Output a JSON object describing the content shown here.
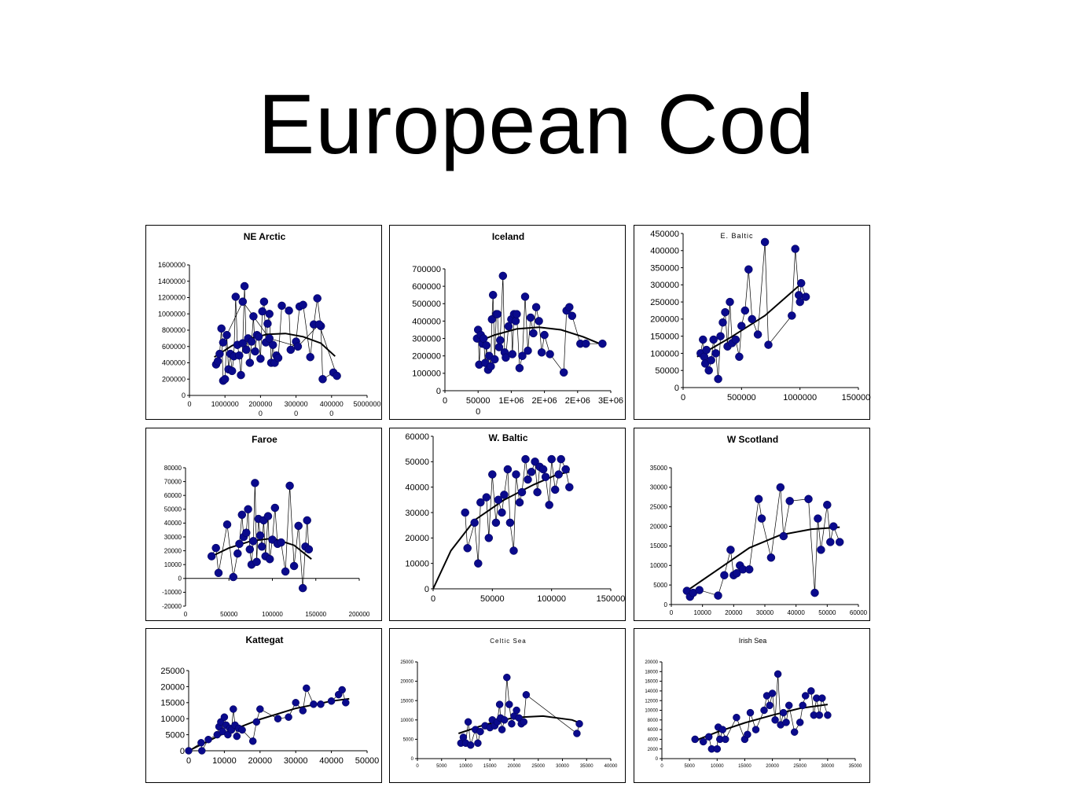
{
  "page": {
    "title": "European Cod"
  },
  "chart_data": [
    {
      "type": "scatter",
      "title": "NE Arctic",
      "xlim": [
        0,
        5000000
      ],
      "ylim": [
        0,
        1600000
      ],
      "xticks": [
        "0",
        "1000000",
        "200000\n0",
        "300000\n0",
        "400000\n0",
        "5000000"
      ],
      "yticks": [
        "0",
        "200000",
        "400000",
        "600000",
        "800000",
        "1000000",
        "1200000",
        "1400000",
        "1600000"
      ],
      "connected": true,
      "x": [
        750000,
        800000,
        850000,
        900000,
        950000,
        1000000,
        1050000,
        1100000,
        1150000,
        1200000,
        1250000,
        1300000,
        1350000,
        1400000,
        1450000,
        1500000,
        1550000,
        1600000,
        1650000,
        1700000,
        1750000,
        1800000,
        1850000,
        1900000,
        1950000,
        2000000,
        2050000,
        2100000,
        2150000,
        2200000,
        2250000,
        2300000,
        2350000,
        2400000,
        2450000,
        2500000,
        2600000,
        2800000,
        2850000,
        3000000,
        3100000,
        3200000,
        3400000,
        3500000,
        3600000,
        3700000,
        3750000,
        4050000,
        4150000,
        3650000,
        3050000,
        2250000,
        1500000,
        950000
      ],
      "y": [
        380000,
        420000,
        510000,
        820000,
        180000,
        200000,
        740000,
        320000,
        510000,
        300000,
        480000,
        1210000,
        620000,
        490000,
        250000,
        640000,
        1340000,
        560000,
        700000,
        400000,
        660000,
        970000,
        540000,
        740000,
        720000,
        450000,
        1030000,
        1150000,
        650000,
        880000,
        1000000,
        400000,
        620000,
        400000,
        490000,
        460000,
        1100000,
        1040000,
        560000,
        660000,
        1090000,
        1110000,
        470000,
        870000,
        1190000,
        850000,
        200000,
        280000,
        240000,
        870000,
        600000,
        700000,
        1150000,
        650000
      ],
      "fit": [
        [
          700000,
          470000
        ],
        [
          1200000,
          610000
        ],
        [
          1700000,
          700000
        ],
        [
          2200000,
          750000
        ],
        [
          2700000,
          760000
        ],
        [
          3200000,
          720000
        ],
        [
          3700000,
          640000
        ],
        [
          4100000,
          480000
        ]
      ]
    },
    {
      "type": "scatter",
      "title": "Iceland",
      "xlim": [
        0,
        3000000
      ],
      "ylim": [
        0,
        700000
      ],
      "xticks": [
        "0",
        "50000\n0",
        "1E+06",
        "2E+06",
        "2E+06",
        "3E+06"
      ],
      "yticks": [
        "0",
        "100000",
        "200000",
        "300000",
        "400000",
        "500000",
        "600000",
        "700000"
      ],
      "connected": true,
      "x": [
        580000,
        600000,
        620000,
        650000,
        680000,
        700000,
        730000,
        750000,
        780000,
        800000,
        830000,
        850000,
        870000,
        900000,
        930000,
        950000,
        980000,
        1000000,
        1050000,
        1080000,
        1100000,
        1150000,
        1200000,
        1220000,
        1250000,
        1280000,
        1300000,
        1350000,
        1400000,
        1450000,
        1500000,
        1550000,
        1600000,
        1650000,
        1700000,
        1750000,
        1800000,
        1900000,
        2150000,
        2200000,
        2250000,
        2300000,
        2450000,
        2550000,
        2850000
      ],
      "y": [
        300000,
        350000,
        150000,
        320000,
        270000,
        300000,
        160000,
        260000,
        120000,
        200000,
        140000,
        410000,
        550000,
        180000,
        440000,
        440000,
        250000,
        290000,
        660000,
        220000,
        190000,
        370000,
        410000,
        210000,
        440000,
        400000,
        440000,
        130000,
        200000,
        540000,
        230000,
        420000,
        330000,
        480000,
        400000,
        220000,
        320000,
        210000,
        105000,
        460000,
        480000,
        430000,
        270000,
        270000,
        270000
      ],
      "fit": [
        [
          580000,
          280000
        ],
        [
          900000,
          320000
        ],
        [
          1300000,
          355000
        ],
        [
          1700000,
          365000
        ],
        [
          2100000,
          350000
        ],
        [
          2500000,
          310000
        ],
        [
          2800000,
          270000
        ]
      ]
    },
    {
      "type": "scatter",
      "title": "E. Baltic",
      "xlim": [
        0,
        1500000
      ],
      "ylim": [
        0,
        450000
      ],
      "xticks": [
        "0",
        "500000",
        "1000000",
        "1500000"
      ],
      "yticks": [
        "0",
        "50000",
        "100000",
        "150000",
        "200000",
        "250000",
        "300000",
        "350000",
        "400000",
        "450000"
      ],
      "connected": true,
      "x": [
        150000,
        170000,
        180000,
        190000,
        200000,
        220000,
        240000,
        260000,
        280000,
        300000,
        320000,
        340000,
        360000,
        380000,
        400000,
        420000,
        450000,
        480000,
        500000,
        530000,
        560000,
        590000,
        640000,
        700000,
        730000,
        930000,
        960000,
        990000,
        1000000,
        1010000,
        1050000
      ],
      "y": [
        100000,
        140000,
        90000,
        70000,
        110000,
        50000,
        80000,
        140000,
        100000,
        25000,
        150000,
        190000,
        220000,
        120000,
        250000,
        130000,
        140000,
        90000,
        180000,
        225000,
        345000,
        200000,
        155000,
        425000,
        125000,
        210000,
        405000,
        270000,
        250000,
        305000,
        265000
      ],
      "fit": [
        [
          120000,
          90000
        ],
        [
          400000,
          145000
        ],
        [
          700000,
          210000
        ],
        [
          1000000,
          300000
        ]
      ]
    },
    {
      "type": "scatter",
      "title": "Faroe",
      "xlim": [
        0,
        200000
      ],
      "ylim": [
        -20000,
        80000
      ],
      "xticks": [
        "0",
        "50000",
        "100000",
        "150000",
        "200000"
      ],
      "yticks": [
        "-20000",
        "-10000",
        "0",
        "10000",
        "20000",
        "30000",
        "40000",
        "50000",
        "60000",
        "70000",
        "80000"
      ],
      "connected": true,
      "x": [
        30000,
        35000,
        38000,
        48000,
        55000,
        60000,
        62000,
        65000,
        67000,
        70000,
        72000,
        74000,
        76000,
        78000,
        80000,
        82000,
        84000,
        86000,
        88000,
        90000,
        92000,
        95000,
        97000,
        100000,
        103000,
        106000,
        110000,
        115000,
        120000,
        125000,
        130000,
        135000,
        138000,
        140000,
        142000
      ],
      "y": [
        16000,
        22000,
        4000,
        39000,
        1000,
        18000,
        25000,
        46000,
        30000,
        33000,
        50000,
        21000,
        10000,
        27000,
        69000,
        12000,
        43000,
        31000,
        23000,
        42000,
        16000,
        45000,
        14000,
        28000,
        51000,
        25000,
        26000,
        5000,
        67000,
        9000,
        38000,
        -7000,
        23000,
        42000,
        21000
      ],
      "fit": [
        [
          30000,
          16000
        ],
        [
          50000,
          22000
        ],
        [
          75000,
          27000
        ],
        [
          100000,
          29000
        ],
        [
          125000,
          24000
        ],
        [
          145000,
          14000
        ]
      ]
    },
    {
      "type": "scatter",
      "title": "W. Baltic",
      "xlim": [
        0,
        150000
      ],
      "ylim": [
        0,
        60000
      ],
      "xticks": [
        "0",
        "50000",
        "100000",
        "150000"
      ],
      "yticks": [
        "0",
        "10000",
        "20000",
        "30000",
        "40000",
        "50000",
        "60000"
      ],
      "connected": true,
      "x": [
        27000,
        29000,
        35000,
        38000,
        40000,
        45000,
        47000,
        50000,
        53000,
        55000,
        58000,
        60000,
        63000,
        65000,
        68000,
        70000,
        73000,
        75000,
        78000,
        80000,
        83000,
        86000,
        88000,
        90000,
        93000,
        95000,
        98000,
        100000,
        103000,
        106000,
        108000,
        112000,
        115000
      ],
      "y": [
        30000,
        16000,
        26000,
        10000,
        34000,
        36000,
        20000,
        45000,
        26000,
        35000,
        30000,
        37000,
        47000,
        26000,
        15000,
        45000,
        34000,
        38000,
        51000,
        43000,
        46000,
        50000,
        38000,
        48000,
        47000,
        44000,
        33000,
        51000,
        39000,
        45000,
        51000,
        47000,
        40000
      ],
      "fit": [
        [
          0,
          0
        ],
        [
          15000,
          15000
        ],
        [
          35000,
          27000
        ],
        [
          60000,
          35000
        ],
        [
          85000,
          41000
        ],
        [
          105000,
          45000
        ],
        [
          115000,
          46000
        ]
      ]
    },
    {
      "type": "scatter",
      "title": "W Scotland",
      "xlim": [
        0,
        60000
      ],
      "ylim": [
        0,
        35000
      ],
      "xticks": [
        "0",
        "10000",
        "20000",
        "30000",
        "40000",
        "50000",
        "60000"
      ],
      "yticks": [
        "0",
        "5000",
        "10000",
        "15000",
        "20000",
        "25000",
        "30000",
        "35000"
      ],
      "connected": true,
      "x": [
        5000,
        6000,
        7000,
        9000,
        15000,
        17000,
        19000,
        20000,
        21000,
        22000,
        23000,
        25000,
        28000,
        29000,
        32000,
        35000,
        36000,
        38000,
        44000,
        46000,
        47000,
        48000,
        50000,
        51000,
        52000,
        54000
      ],
      "y": [
        3500,
        2000,
        3000,
        3700,
        2300,
        7500,
        14000,
        7500,
        8000,
        10000,
        9000,
        9000,
        27000,
        22000,
        12000,
        30000,
        17500,
        26500,
        27000,
        3000,
        22000,
        14000,
        25500,
        16000,
        20000,
        16000
      ],
      "fit": [
        [
          5000,
          3500
        ],
        [
          15000,
          9000
        ],
        [
          25000,
          14500
        ],
        [
          35000,
          17800
        ],
        [
          45000,
          19300
        ],
        [
          54000,
          19800
        ]
      ]
    },
    {
      "type": "scatter",
      "title": "Kattegat",
      "xlim": [
        0,
        50000
      ],
      "ylim": [
        0,
        25000
      ],
      "xticks": [
        "0",
        "10000",
        "20000",
        "30000",
        "40000",
        "50000"
      ],
      "yticks": [
        "0",
        "5000",
        "10000",
        "15000",
        "20000",
        "25000"
      ],
      "connected": true,
      "x": [
        0,
        3500,
        3700,
        5500,
        8000,
        8500,
        9000,
        9500,
        10000,
        10500,
        11000,
        11500,
        12000,
        12500,
        13000,
        13500,
        14000,
        15000,
        18000,
        19000,
        20000,
        25000,
        28000,
        30000,
        32000,
        33000,
        35000,
        37000,
        40000,
        42000,
        43000,
        44000
      ],
      "y": [
        0,
        2500,
        0,
        3500,
        5000,
        7500,
        9000,
        6000,
        10500,
        8000,
        5000,
        7000,
        6500,
        13000,
        8000,
        4500,
        7000,
        6500,
        3000,
        9000,
        13000,
        10000,
        10500,
        15000,
        12500,
        19500,
        14500,
        14500,
        15500,
        17500,
        19000,
        15000
      ],
      "fit": [
        [
          0,
          0
        ],
        [
          10000,
          5500
        ],
        [
          20000,
          9800
        ],
        [
          30000,
          13200
        ],
        [
          40000,
          15500
        ],
        [
          45000,
          16200
        ]
      ]
    },
    {
      "type": "scatter",
      "title": "Celtic Sea",
      "xlim": [
        0,
        40000
      ],
      "ylim": [
        0,
        25000
      ],
      "xticks": [
        "0",
        "5000",
        "10000",
        "15000",
        "20000",
        "25000",
        "30000",
        "35000",
        "40000"
      ],
      "yticks": [
        "0",
        "5000",
        "10000",
        "15000",
        "20000",
        "25000"
      ],
      "connected": true,
      "x": [
        9000,
        9500,
        10000,
        10500,
        11000,
        12000,
        12500,
        13000,
        14000,
        15000,
        15500,
        16000,
        16500,
        17000,
        17200,
        17500,
        18000,
        18500,
        19000,
        19500,
        20000,
        20500,
        21000,
        21500,
        22000,
        22500,
        33000,
        33500
      ],
      "y": [
        4000,
        5500,
        4000,
        9500,
        3500,
        7500,
        4000,
        7000,
        8500,
        8000,
        10000,
        8500,
        9500,
        14000,
        10500,
        7500,
        10000,
        21000,
        14000,
        9000,
        11000,
        12500,
        10500,
        9000,
        9500,
        16500,
        6500,
        9000
      ],
      "fit": [
        [
          8500,
          6500
        ],
        [
          14000,
          8800
        ],
        [
          20000,
          10600
        ],
        [
          26000,
          11000
        ],
        [
          32000,
          10000
        ],
        [
          34000,
          9000
        ]
      ]
    },
    {
      "type": "scatter",
      "title": "Irish Sea",
      "xlim": [
        0,
        35000
      ],
      "ylim": [
        0,
        20000
      ],
      "xticks": [
        "0",
        "5000",
        "10000",
        "15000",
        "20000",
        "25000",
        "30000",
        "35000"
      ],
      "yticks": [
        "0",
        "2000",
        "4000",
        "6000",
        "8000",
        "10000",
        "12000",
        "14000",
        "16000",
        "18000",
        "20000"
      ],
      "connected": true,
      "x": [
        6000,
        7500,
        8500,
        9000,
        10000,
        10200,
        10500,
        11000,
        11500,
        13500,
        15000,
        15500,
        16000,
        17000,
        18500,
        19000,
        19500,
        20000,
        20500,
        21000,
        21500,
        22000,
        22500,
        23000,
        24000,
        25000,
        25500,
        26000,
        27000,
        27500,
        28000,
        28500,
        29000,
        30000
      ],
      "y": [
        4000,
        3500,
        4500,
        2000,
        2000,
        6500,
        4000,
        6000,
        4000,
        8500,
        4000,
        5000,
        9500,
        6000,
        10000,
        13000,
        11000,
        13500,
        8000,
        17500,
        7000,
        9500,
        7500,
        11000,
        5500,
        7500,
        11000,
        13000,
        14000,
        9000,
        12500,
        9000,
        12500,
        9000
      ],
      "fit": [
        [
          5500,
          3500
        ],
        [
          10000,
          5500
        ],
        [
          15000,
          7400
        ],
        [
          20000,
          9000
        ],
        [
          25000,
          10400
        ],
        [
          30000,
          11200
        ]
      ]
    }
  ]
}
